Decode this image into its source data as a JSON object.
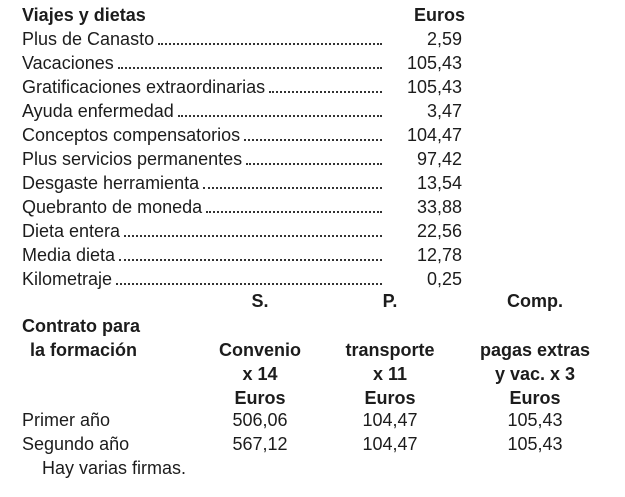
{
  "section": {
    "title": "Viajes y dietas",
    "unit_header": "Euros",
    "items": [
      {
        "label": "Plus de Canasto",
        "value": "2,59"
      },
      {
        "label": "Vacaciones",
        "value": "105,43"
      },
      {
        "label": "Gratificaciones extraordinarias",
        "value": "105,43"
      },
      {
        "label": "Ayuda enfermedad",
        "value": "3,47"
      },
      {
        "label": "Conceptos compensatorios",
        "value": "104,47"
      },
      {
        "label": "Plus servicios permanentes",
        "value": "97,42"
      },
      {
        "label": "Desgaste herramienta",
        "value": "13,54"
      },
      {
        "label": "Quebranto de moneda",
        "value": "33,88"
      },
      {
        "label": "Dieta entera",
        "value": "22,56"
      },
      {
        "label": "Media dieta",
        "value": "12,78"
      },
      {
        "label": "Kilometraje",
        "value": "0,25"
      }
    ]
  },
  "table": {
    "row_header": [
      "Contrato para",
      "la formación"
    ],
    "column_headers": [
      [
        "S.",
        "Convenio",
        "x 14",
        "Euros"
      ],
      [
        "P.",
        "transporte",
        "x 11",
        "Euros"
      ],
      [
        "Comp.",
        "pagas extras",
        "y vac. x 3",
        "Euros"
      ]
    ],
    "rows": [
      {
        "label": "Primer año",
        "values": [
          "506,06",
          "104,47",
          "105,43"
        ]
      },
      {
        "label": "Segundo año",
        "values": [
          "567,12",
          "104,47",
          "105,43"
        ]
      }
    ]
  },
  "footer": "Hay varias firmas."
}
